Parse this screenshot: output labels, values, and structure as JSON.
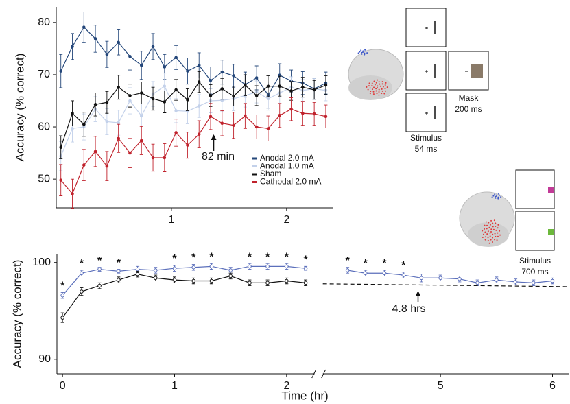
{
  "chart_data": [
    {
      "type": "line",
      "y_label": "Accuracy (% correct)",
      "xlim": [
        0,
        2.4
      ],
      "ylim": [
        44.5,
        83
      ],
      "xticks": [
        1,
        2
      ],
      "yticks": [
        50,
        60,
        70,
        80
      ],
      "legend": "lower right",
      "x": [
        0.04,
        0.14,
        0.24,
        0.34,
        0.44,
        0.54,
        0.64,
        0.74,
        0.84,
        0.94,
        1.04,
        1.14,
        1.24,
        1.34,
        1.44,
        1.54,
        1.64,
        1.74,
        1.84,
        1.94,
        2.04,
        2.14,
        2.24,
        2.34
      ],
      "annotations": [
        {
          "text": "82 min",
          "x": 1.367
        }
      ],
      "series": [
        {
          "name": "Anodal 2.0 mA",
          "color": "#24477a",
          "values": [
            70.7,
            75.4,
            79.1,
            76.9,
            73.9,
            76.2,
            73.5,
            71.8,
            75.4,
            71.5,
            73.3,
            70.7,
            71.8,
            68.9,
            70.5,
            69.8,
            68.1,
            69.4,
            66.1,
            69.9,
            68.8,
            68.4,
            67.3,
            68.4
          ],
          "errors": [
            3.2,
            2.5,
            2.9,
            2.6,
            2.5,
            2.4,
            2.6,
            2.7,
            2.5,
            2.4,
            2.3,
            2.5,
            2.4,
            2.6,
            2.3,
            2.2,
            2.4,
            2.3,
            2.5,
            2.2,
            2.1,
            2.2,
            2.0,
            2.1
          ]
        },
        {
          "name": "Anodal 1.0 mA",
          "color": "#c3d1ea",
          "values": [
            54.4,
            59.7,
            60.0,
            63.4,
            61.0,
            60.8,
            65.0,
            62.1,
            66.3,
            67.8,
            63.1,
            63.0,
            64.0,
            65.0,
            65.1,
            65.4,
            66.0,
            66.7,
            65.4,
            66.5,
            67.6,
            67.0,
            67.3,
            67.0
          ],
          "errors": [
            2.8,
            2.6,
            2.5,
            2.4,
            2.5,
            2.4,
            2.5,
            2.3,
            2.4,
            2.5,
            2.3,
            2.4,
            2.2,
            2.3,
            2.2,
            2.3,
            2.2,
            2.1,
            2.2,
            2.1,
            2.0,
            2.1,
            2.0,
            2.0
          ]
        },
        {
          "name": "Sham",
          "color": "#111111",
          "values": [
            56.1,
            62.6,
            60.5,
            64.3,
            64.7,
            67.6,
            66.0,
            66.5,
            65.4,
            64.8,
            67.1,
            65.2,
            68.6,
            66.0,
            67.3,
            65.9,
            68.0,
            66.0,
            67.8,
            67.8,
            66.9,
            67.6,
            67.1,
            68.0
          ],
          "errors": [
            2.2,
            2.4,
            2.3,
            2.2,
            2.1,
            2.3,
            2.2,
            2.1,
            2.2,
            2.1,
            2.0,
            2.1,
            2.0,
            2.1,
            2.0,
            1.9,
            2.0,
            1.9,
            2.0,
            1.9,
            1.8,
            1.9,
            1.8,
            1.8
          ]
        },
        {
          "name": "Cathodal 2.0 mA",
          "color": "#c0222c",
          "values": [
            49.8,
            47.2,
            52.7,
            55.3,
            52.5,
            57.8,
            55.0,
            57.4,
            54.1,
            54.1,
            58.9,
            56.5,
            58.6,
            62.0,
            60.7,
            60.3,
            62.1,
            60.0,
            59.7,
            62.2,
            63.4,
            62.6,
            62.5,
            62.0
          ],
          "errors": [
            3.0,
            2.8,
            3.0,
            2.9,
            2.8,
            2.7,
            2.8,
            2.7,
            2.6,
            2.7,
            2.6,
            2.5,
            2.6,
            2.5,
            2.4,
            2.5,
            2.4,
            2.3,
            2.4,
            2.3,
            2.2,
            2.3,
            2.2,
            2.2
          ]
        }
      ]
    },
    {
      "type": "line",
      "x_label": "Time (hr)",
      "y_label": "Accuracy (% correct)",
      "xlim": [
        -0.05,
        6.15
      ],
      "xbreak": [
        2.25,
        3.95
      ],
      "ylim": [
        88.5,
        100.9
      ],
      "xticks": [
        0,
        1,
        2,
        5,
        6
      ],
      "yticks": [
        90,
        100
      ],
      "annotations": [
        {
          "text": "4.8 hrs",
          "x": 4.8
        }
      ],
      "series": [
        {
          "color": "#5b6fbb",
          "marker": "circle",
          "x": [
            0,
            0.17,
            0.33,
            0.5,
            0.67,
            0.83,
            1,
            1.17,
            1.33,
            1.5,
            1.67,
            1.83,
            2,
            2.17,
            4,
            4.17,
            4.33,
            4.5,
            4.67,
            4.83,
            5,
            5.17,
            5.33,
            5.5,
            5.67,
            5.83,
            6
          ],
          "values": [
            96.6,
            98.9,
            99.3,
            99.1,
            99.3,
            99.2,
            99.4,
            99.5,
            99.6,
            99.2,
            99.6,
            99.6,
            99.6,
            99.4,
            null,
            99.2,
            98.9,
            98.9,
            98.7,
            98.4,
            98.4,
            98.3,
            97.9,
            98.2,
            98.0,
            97.9,
            98.1
          ],
          "errors": [
            0.3,
            0.3,
            0.2,
            0.2,
            0.3,
            0.3,
            0.3,
            0.3,
            0.3,
            0.3,
            0.3,
            0.3,
            0.3,
            0.2,
            null,
            0.3,
            0.3,
            0.3,
            0.3,
            0.4,
            0.3,
            0.3,
            0.3,
            0.3,
            0.3,
            0.3,
            0.3
          ],
          "significance": [
            "*",
            "*",
            "*",
            "*",
            null,
            null,
            "*",
            "*",
            "*",
            null,
            "*",
            "*",
            "*",
            "*",
            null,
            "*",
            "*",
            "*",
            "*",
            null,
            null,
            null,
            null,
            null,
            null,
            null,
            null
          ]
        },
        {
          "color": "#111111",
          "marker": "circle",
          "x": [
            0,
            0.17,
            0.33,
            0.5,
            0.67,
            0.83,
            1,
            1.17,
            1.33,
            1.5,
            1.67,
            1.83,
            2,
            2.17
          ],
          "values": [
            94.3,
            97.0,
            97.6,
            98.2,
            98.8,
            98.4,
            98.2,
            98.1,
            98.1,
            98.6,
            97.9,
            97.9,
            98.1,
            97.9
          ],
          "errors": [
            0.5,
            0.4,
            0.3,
            0.3,
            0.3,
            0.3,
            0.3,
            0.3,
            0.3,
            0.3,
            0.3,
            0.3,
            0.3,
            0.3
          ]
        },
        {
          "color": "#111111",
          "dashed": true,
          "x": [
            3.95,
            6.15
          ],
          "values": [
            97.8,
            97.5
          ]
        }
      ]
    }
  ],
  "diagram": {
    "top": {
      "mask_label": "Mask",
      "mask_duration": "200 ms",
      "stimulus_label": "Stimulus",
      "stimulus_duration": "54 ms"
    },
    "bottom": {
      "stimulus_label": "Stimulus",
      "stimulus_duration": "700 ms"
    }
  }
}
